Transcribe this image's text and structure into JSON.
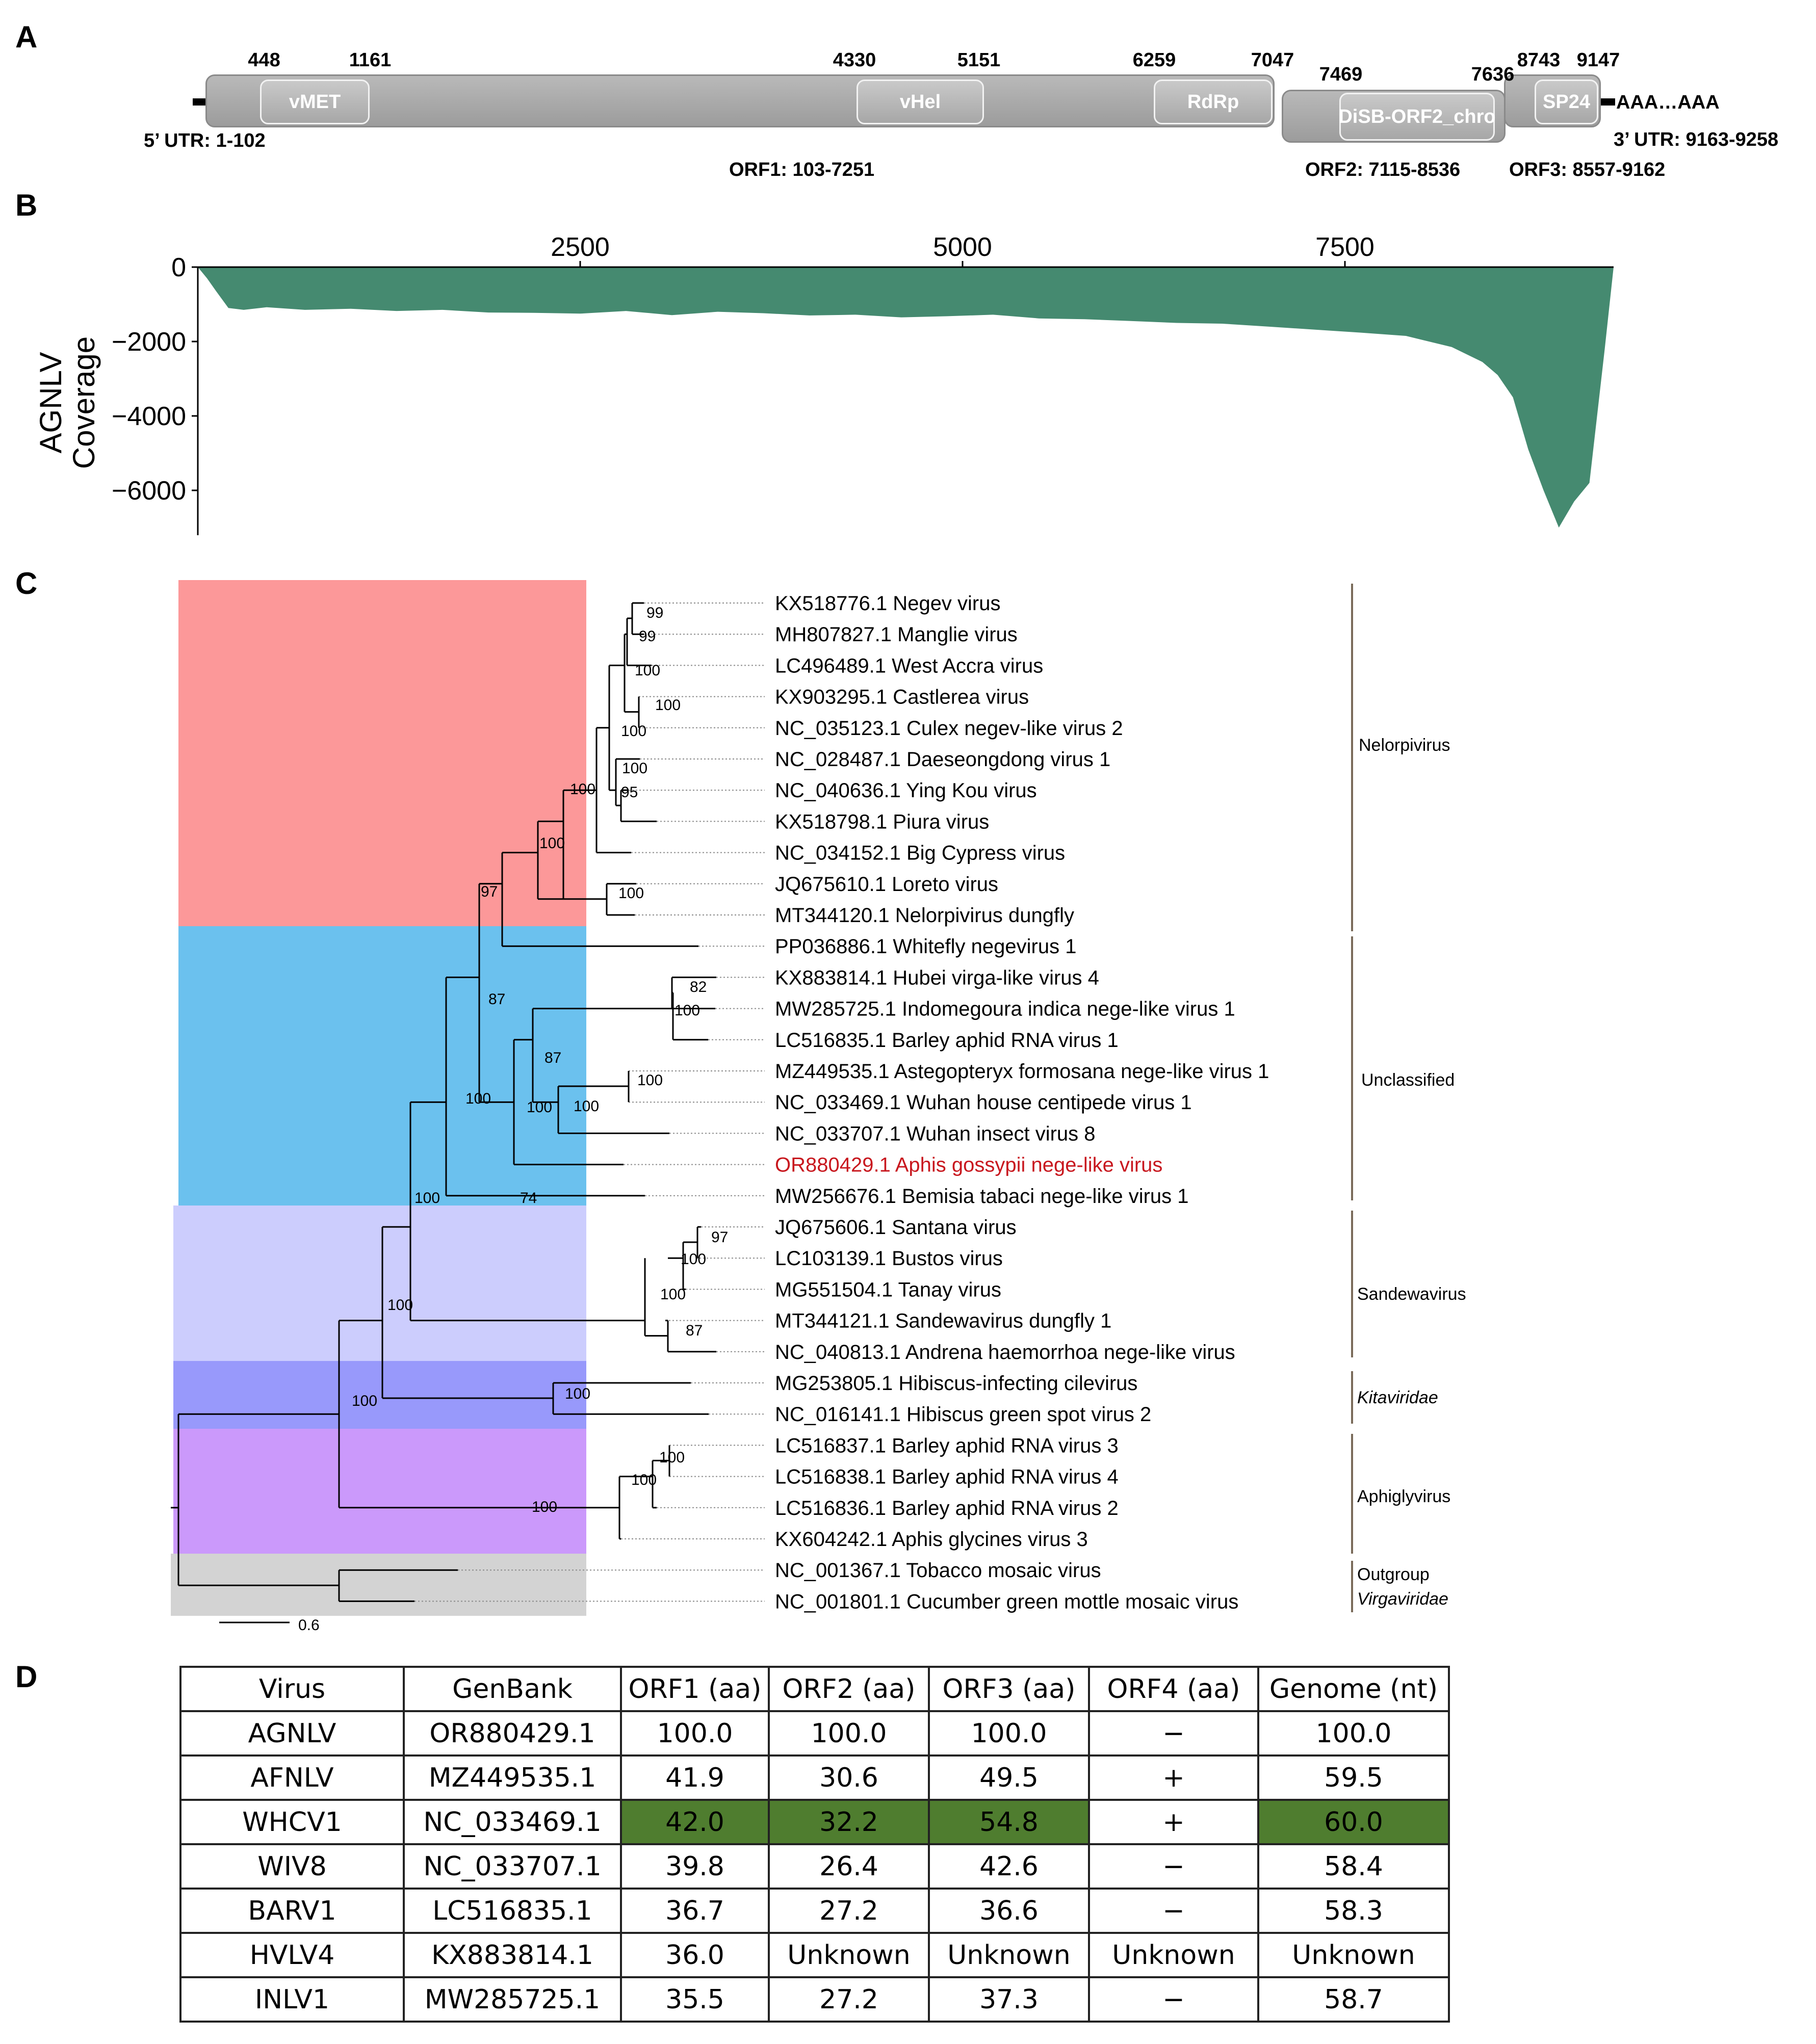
{
  "panels": {
    "a": "A",
    "b": "B",
    "c": "C",
    "d": "D"
  },
  "genome_map": {
    "positions": [
      "448",
      "1161",
      "4330",
      "5151",
      "6259",
      "7047",
      "7469",
      "7636",
      "8743",
      "9147"
    ],
    "domains": [
      "vMET",
      "vHel",
      "RdRp",
      "DiSB-ORF2_chro",
      "SP24"
    ],
    "utr5": "5’ UTR: 1-102",
    "utr3": "3’ UTR: 9163-9258",
    "polya": "AAA…AAA",
    "orf1": "ORF1: 103-7251",
    "orf2": "ORF2: 7115-8536",
    "orf3": "ORF3: 8557-9162"
  },
  "coverage": {
    "ylabel_line1": "AGNLV",
    "ylabel_line2": "Coverage",
    "x_ticks": [
      "2500",
      "5000",
      "7500"
    ],
    "y_ticks": [
      "0",
      "−2000",
      "−4000",
      "−6000"
    ],
    "fill_color": "#458a70"
  },
  "chart_data": {
    "type": "area",
    "title": "",
    "xlabel": "",
    "ylabel": "AGNLV Coverage",
    "xlim": [
      0,
      9258
    ],
    "ylim": [
      -7200,
      0
    ],
    "x_ticks": [
      2500,
      5000,
      7500
    ],
    "y_ticks": [
      0,
      -2000,
      -4000,
      -6000
    ],
    "series": [
      {
        "name": "AGNLV coverage",
        "x": [
          0,
          60,
          120,
          200,
          300,
          450,
          700,
          1000,
          1300,
          1600,
          1900,
          2200,
          2500,
          2800,
          3100,
          3400,
          3700,
          4000,
          4300,
          4600,
          4900,
          5200,
          5500,
          5800,
          6100,
          6400,
          6700,
          7000,
          7300,
          7600,
          7900,
          8200,
          8400,
          8500,
          8600,
          8700,
          8800,
          8900,
          9000,
          9100,
          9200,
          9258
        ],
        "values": [
          0,
          -300,
          -650,
          -1100,
          -1150,
          -1080,
          -1150,
          -1120,
          -1180,
          -1150,
          -1220,
          -1230,
          -1250,
          -1180,
          -1290,
          -1200,
          -1240,
          -1300,
          -1280,
          -1350,
          -1320,
          -1280,
          -1380,
          -1400,
          -1450,
          -1500,
          -1520,
          -1600,
          -1680,
          -1760,
          -1850,
          -2150,
          -2550,
          -2900,
          -3500,
          -4900,
          -6000,
          -7000,
          -6300,
          -5800,
          -2200,
          0
        ]
      }
    ]
  },
  "tree": {
    "taxa": [
      {
        "label": "KX518776.1 Negev virus",
        "color": "#000000"
      },
      {
        "label": "MH807827.1 Manglie virus",
        "color": "#000000"
      },
      {
        "label": "LC496489.1 West Accra virus",
        "color": "#000000"
      },
      {
        "label": "KX903295.1 Castlerea virus",
        "color": "#000000"
      },
      {
        "label": "NC_035123.1 Culex negev-like virus 2",
        "color": "#000000"
      },
      {
        "label": "NC_028487.1 Daeseongdong virus 1",
        "color": "#000000"
      },
      {
        "label": "NC_040636.1 Ying Kou virus",
        "color": "#000000"
      },
      {
        "label": "KX518798.1 Piura virus",
        "color": "#000000"
      },
      {
        "label": "NC_034152.1 Big Cypress virus",
        "color": "#000000"
      },
      {
        "label": "JQ675610.1 Loreto virus",
        "color": "#000000"
      },
      {
        "label": "MT344120.1 Nelorpivirus dungfly",
        "color": "#000000"
      },
      {
        "label": "PP036886.1 Whitefly negevirus 1",
        "color": "#000000"
      },
      {
        "label": "KX883814.1 Hubei virga-like virus 4",
        "color": "#000000"
      },
      {
        "label": "MW285725.1 Indomegoura indica nege-like virus 1",
        "color": "#000000"
      },
      {
        "label": "LC516835.1 Barley aphid RNA virus 1",
        "color": "#000000"
      },
      {
        "label": "MZ449535.1 Astegopteryx formosana nege-like virus 1",
        "color": "#000000"
      },
      {
        "label": "NC_033469.1 Wuhan house centipede virus 1",
        "color": "#000000"
      },
      {
        "label": "NC_033707.1 Wuhan insect virus 8",
        "color": "#000000"
      },
      {
        "label": "OR880429.1 Aphis gossypii nege-like virus",
        "color": "#c8171e"
      },
      {
        "label": "MW256676.1 Bemisia tabaci nege-like virus 1",
        "color": "#000000"
      },
      {
        "label": "JQ675606.1 Santana virus",
        "color": "#000000"
      },
      {
        "label": "LC103139.1 Bustos virus",
        "color": "#000000"
      },
      {
        "label": "MG551504.1 Tanay virus",
        "color": "#000000"
      },
      {
        "label": "MT344121.1 Sandewavirus dungfly 1",
        "color": "#000000"
      },
      {
        "label": "NC_040813.1 Andrena haemorrhoa nege-like virus",
        "color": "#000000"
      },
      {
        "label": "MG253805.1 Hibiscus-infecting cilevirus",
        "color": "#000000"
      },
      {
        "label": "NC_016141.1 Hibiscus green spot virus 2",
        "color": "#000000"
      },
      {
        "label": "LC516837.1 Barley aphid RNA virus 3",
        "color": "#000000"
      },
      {
        "label": "LC516838.1 Barley aphid RNA virus 4",
        "color": "#000000"
      },
      {
        "label": "LC516836.1 Barley aphid RNA virus 2",
        "color": "#000000"
      },
      {
        "label": "KX604242.1 Aphis glycines virus 3",
        "color": "#000000"
      },
      {
        "label": "NC_001367.1 Tobacco mosaic virus",
        "color": "#000000"
      },
      {
        "label": "NC_001801.1 Cucumber green mottle mosaic virus",
        "color": "#000000"
      }
    ],
    "groups": [
      {
        "name": "Nelorpivirus",
        "italic": false,
        "color": "#fc9899"
      },
      {
        "name": "Unclassified",
        "italic": false,
        "color": "#6bc1ee"
      },
      {
        "name": "Sandewavirus",
        "italic": false,
        "color": "#cccdfd"
      },
      {
        "name": "Kitaviridae",
        "italic": true,
        "color": "#9899fb"
      },
      {
        "name": "Aphiglyvirus",
        "italic": false,
        "color": "#cb99fb"
      },
      {
        "name": "Outgroup",
        "italic": false,
        "color": "#d3d3d3"
      },
      {
        "name": "Virgaviridae",
        "italic": true,
        "color": "#d3d3d3"
      }
    ],
    "bootstrap": [
      "99",
      "99",
      "100",
      "100",
      "100",
      "100",
      "95",
      "100",
      "100",
      "97",
      "100",
      "87",
      "82",
      "100",
      "87",
      "100",
      "100",
      "100",
      "100",
      "74",
      "100",
      "97",
      "100",
      "100",
      "87",
      "100",
      "100",
      "100",
      "100",
      "100",
      "100"
    ],
    "scale_label": "0.6"
  },
  "table": {
    "headers": [
      "Virus",
      "GenBank",
      "ORF1 (aa)",
      "ORF2 (aa)",
      "ORF3 (aa)",
      "ORF4 (aa)",
      "Genome (nt)"
    ],
    "rows": [
      [
        "AGNLV",
        "OR880429.1",
        "100.0",
        "100.0",
        "100.0",
        "−",
        "100.0"
      ],
      [
        "AFNLV",
        "MZ449535.1",
        "41.9",
        "30.6",
        "49.5",
        "+",
        "59.5"
      ],
      [
        "WHCV1",
        "NC_033469.1",
        "42.0",
        "32.2",
        "54.8",
        "+",
        "60.0"
      ],
      [
        "WIV8",
        "NC_033707.1",
        "39.8",
        "26.4",
        "42.6",
        "−",
        "58.4"
      ],
      [
        "BARV1",
        "LC516835.1",
        "36.7",
        "27.2",
        "36.6",
        "−",
        "58.3"
      ],
      [
        "HVLV4",
        "KX883814.1",
        "36.0",
        "Unknown",
        "Unknown",
        "Unknown",
        "Unknown"
      ],
      [
        "INLV1",
        "MW285725.1",
        "35.5",
        "27.2",
        "37.3",
        "−",
        "58.7"
      ]
    ],
    "highlight_color": "#4f7d2f"
  }
}
